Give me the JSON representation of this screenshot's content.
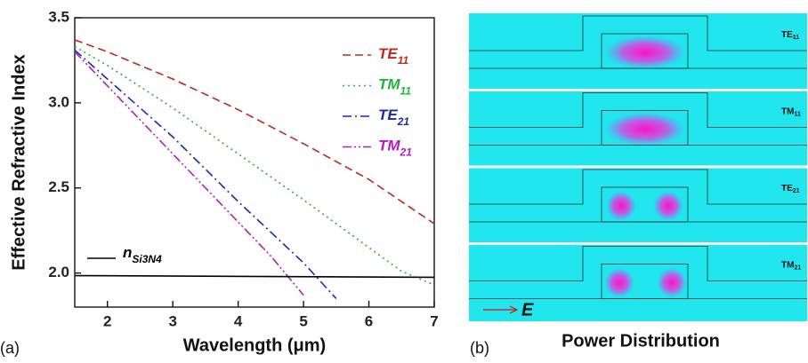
{
  "chart_data": {
    "type": "line",
    "xlabel": "Wavelength (μm)",
    "ylabel": "Effective Refractive Index",
    "panel_label": "(a)",
    "xlim": [
      1.5,
      7
    ],
    "ylim": [
      1.8,
      3.5
    ],
    "xticks": [
      2,
      3,
      4,
      5,
      6,
      7
    ],
    "yticks": [
      {
        "value": 2,
        "label": "2.0"
      },
      2.5,
      {
        "value": 3,
        "label": "3.0"
      },
      3.5
    ],
    "series": [
      {
        "name": "TE",
        "subscript": "11",
        "color": "#c0281e",
        "dash": "dashed",
        "x": [
          1.5,
          2,
          3,
          4,
          5,
          6,
          7
        ],
        "values": [
          3.37,
          3.3,
          3.14,
          2.96,
          2.76,
          2.55,
          2.29
        ]
      },
      {
        "name": "TM",
        "subscript": "11",
        "color": "#22b33a",
        "dash": "dotted",
        "x": [
          1.5,
          2,
          3,
          4,
          5,
          6,
          6.5,
          7
        ],
        "values": [
          3.33,
          3.22,
          2.97,
          2.7,
          2.43,
          2.15,
          2.01,
          1.93
        ]
      },
      {
        "name": "TE",
        "subscript": "21",
        "color": "#1a2aa8",
        "dash": "dashdot",
        "x": [
          1.5,
          2,
          3,
          4,
          5,
          5.5
        ],
        "values": [
          3.31,
          3.14,
          2.8,
          2.42,
          2.06,
          1.85
        ]
      },
      {
        "name": "TM",
        "subscript": "21",
        "color": "#b21cc0",
        "dash": "dashdotdot",
        "x": [
          1.5,
          2,
          3,
          4,
          4.5,
          5
        ],
        "values": [
          3.3,
          3.1,
          2.7,
          2.3,
          2.1,
          1.87
        ]
      },
      {
        "name": "n",
        "subscript": "Si3N4",
        "color": "#000000",
        "dash": "solid",
        "x": [
          1.5,
          7
        ],
        "values": [
          1.985,
          1.975
        ]
      }
    ]
  },
  "panel_b": {
    "label": "(b)",
    "caption": "Power Distribution",
    "field_label": "E",
    "modes": [
      {
        "name": "TE",
        "subscript": "11"
      },
      {
        "name": "TM",
        "subscript": "11"
      },
      {
        "name": "TE",
        "subscript": "21"
      },
      {
        "name": "TM",
        "subscript": "21"
      }
    ]
  }
}
